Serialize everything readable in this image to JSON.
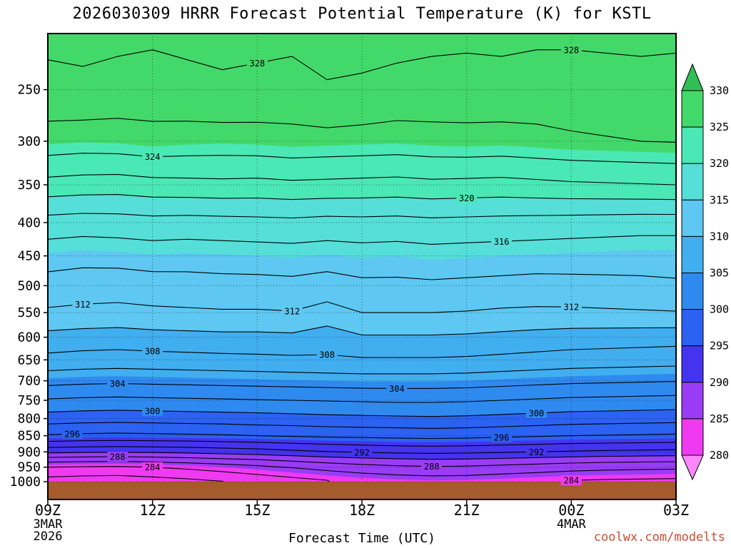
{
  "title": "2026030309 HRRR Forecast Potential Temperature (K) for KSTL",
  "watermark": {
    "text": "coolwx.com/modelts",
    "color": "#cd4a30"
  },
  "axes": {
    "x_label": "Forecast Time (UTC)",
    "x_ticks": [
      {
        "label": "09Z",
        "hour": 0
      },
      {
        "label": "12Z",
        "hour": 3
      },
      {
        "label": "15Z",
        "hour": 6
      },
      {
        "label": "18Z",
        "hour": 9
      },
      {
        "label": "21Z",
        "hour": 12
      },
      {
        "label": "00Z",
        "hour": 15
      },
      {
        "label": "03Z",
        "hour": 18
      }
    ],
    "x_date_labels": [
      {
        "text": "3MAR",
        "hour": 0,
        "row": 0
      },
      {
        "text": "2026",
        "hour": 0,
        "row": 1
      },
      {
        "text": "4MAR",
        "hour": 15,
        "row": 0
      }
    ],
    "y_ticks_hPa": [
      250,
      300,
      350,
      400,
      450,
      500,
      550,
      600,
      650,
      700,
      750,
      800,
      850,
      900,
      950,
      1000
    ]
  },
  "colorbar": {
    "tick_labels": [
      330,
      325,
      320,
      315,
      310,
      305,
      300,
      295,
      290,
      285,
      280
    ]
  },
  "chart_data": {
    "type": "heatmap",
    "geometry": "time-height filled-contour cross-section",
    "title": "2026030309 HRRR Forecast Potential Temperature (K) for KSTL",
    "xlabel": "Forecast Time (UTC)",
    "y_scale": "log-pressure",
    "p_range_plot": [
      1065,
      205
    ],
    "forecast_hour_offset": [
      0,
      1,
      2,
      3,
      4,
      5,
      6,
      7,
      8,
      9,
      10,
      11,
      12,
      13,
      14,
      15,
      16,
      17,
      18
    ],
    "pressure_levels_hPa": [
      1000,
      975,
      950,
      925,
      900,
      875,
      850,
      825,
      800,
      775,
      750,
      700,
      650,
      600,
      550,
      500,
      450,
      400,
      350,
      300,
      250,
      200
    ],
    "potential_temperature_K": [
      [
        281.0,
        280.8,
        280.7,
        281.0,
        281.4,
        281.9,
        282.5,
        283.1,
        283.7,
        284.2,
        284.5,
        284.7,
        284.6,
        284.3,
        284.0,
        283.7,
        283.5,
        283.4,
        283.3
      ],
      [
        282.5,
        282.3,
        282.2,
        282.5,
        282.9,
        283.4,
        284.0,
        284.6,
        285.2,
        285.7,
        286.1,
        286.3,
        286.2,
        285.9,
        285.6,
        285.3,
        285.1,
        285.0,
        284.9
      ],
      [
        284.0,
        283.8,
        283.7,
        284.0,
        284.4,
        284.9,
        285.5,
        286.1,
        286.7,
        287.2,
        287.6,
        287.8,
        287.7,
        287.4,
        287.1,
        286.8,
        286.6,
        286.5,
        286.4
      ],
      [
        287.0,
        286.8,
        286.7,
        286.9,
        287.2,
        287.6,
        288.0,
        288.5,
        289.0,
        289.4,
        289.7,
        289.9,
        289.8,
        289.6,
        289.3,
        289.0,
        288.8,
        288.7,
        288.6
      ],
      [
        290.5,
        290.3,
        290.2,
        290.3,
        290.5,
        290.8,
        291.1,
        291.5,
        291.9,
        292.2,
        292.4,
        292.5,
        292.4,
        292.2,
        292.0,
        291.8,
        291.6,
        291.5,
        291.4
      ],
      [
        293.2,
        293.0,
        292.9,
        293.0,
        293.1,
        293.3,
        293.5,
        293.8,
        294.1,
        294.3,
        294.5,
        294.6,
        294.5,
        294.3,
        294.1,
        293.9,
        293.8,
        293.7,
        293.6
      ],
      [
        295.8,
        295.6,
        295.5,
        295.6,
        295.7,
        295.8,
        296.0,
        296.2,
        296.4,
        296.5,
        296.6,
        296.7,
        296.6,
        296.4,
        296.2,
        296.0,
        295.9,
        295.8,
        295.7
      ],
      [
        297.4,
        297.2,
        297.1,
        297.2,
        297.3,
        297.4,
        297.6,
        297.7,
        297.9,
        298.0,
        298.1,
        298.2,
        298.1,
        297.9,
        297.7,
        297.5,
        297.4,
        297.3,
        297.2
      ],
      [
        299.0,
        298.8,
        298.7,
        298.8,
        298.9,
        299.0,
        299.1,
        299.3,
        299.4,
        299.5,
        299.6,
        299.7,
        299.6,
        299.4,
        299.2,
        299.0,
        298.9,
        298.8,
        298.7
      ],
      [
        300.4,
        300.2,
        300.1,
        300.2,
        300.3,
        300.4,
        300.5,
        300.6,
        300.8,
        300.9,
        301.0,
        301.0,
        300.9,
        300.7,
        300.5,
        300.3,
        300.2,
        300.1,
        300.0
      ],
      [
        301.8,
        301.6,
        301.5,
        301.6,
        301.7,
        301.8,
        301.9,
        302.0,
        302.1,
        302.2,
        302.3,
        302.3,
        302.2,
        302.0,
        301.8,
        301.6,
        301.5,
        301.4,
        301.3
      ],
      [
        304.7,
        304.5,
        304.4,
        304.5,
        304.6,
        304.7,
        304.8,
        304.9,
        305.0,
        305.1,
        305.1,
        305.1,
        305.0,
        304.8,
        304.6,
        304.4,
        304.3,
        304.2,
        304.1
      ],
      [
        307.4,
        307.2,
        307.1,
        307.2,
        307.3,
        307.4,
        307.5,
        307.6,
        307.7,
        307.8,
        307.8,
        307.8,
        307.7,
        307.5,
        307.3,
        307.1,
        307.0,
        306.9,
        306.8
      ],
      [
        309.4,
        309.2,
        309.1,
        309.3,
        309.4,
        309.5,
        309.5,
        309.6,
        309.0,
        309.8,
        309.8,
        309.8,
        309.7,
        309.5,
        309.3,
        309.1,
        309.0,
        308.9,
        308.8
      ],
      [
        311.7,
        311.5,
        311.4,
        311.6,
        311.7,
        311.8,
        311.8,
        311.9,
        311.2,
        312.0,
        312.0,
        312.0,
        311.9,
        311.7,
        311.6,
        311.6,
        311.7,
        311.8,
        311.9
      ],
      [
        313.3,
        313.1,
        313.0,
        313.2,
        313.3,
        313.4,
        313.4,
        313.5,
        313.2,
        313.6,
        313.6,
        313.7,
        313.6,
        313.5,
        313.4,
        313.5,
        313.6,
        313.7,
        313.8
      ],
      [
        314.8,
        314.6,
        314.7,
        314.9,
        314.8,
        314.9,
        315.0,
        315.1,
        314.9,
        315.1,
        315.0,
        315.2,
        315.1,
        315.0,
        314.9,
        314.8,
        314.7,
        314.6,
        314.6
      ],
      [
        317.2,
        317.0,
        317.1,
        317.3,
        317.2,
        317.3,
        317.4,
        317.5,
        317.3,
        317.4,
        317.3,
        317.5,
        317.4,
        317.3,
        317.2,
        317.1,
        317.0,
        316.9,
        316.9
      ],
      [
        321.3,
        321.1,
        321.0,
        321.3,
        321.4,
        321.5,
        321.4,
        321.6,
        321.5,
        321.4,
        321.3,
        321.5,
        321.4,
        321.3,
        321.5,
        321.7,
        321.8,
        321.9,
        322.0
      ],
      [
        325.3,
        325.1,
        325.2,
        325.5,
        325.3,
        325.2,
        325.3,
        325.5,
        325.4,
        325.3,
        325.2,
        325.4,
        325.5,
        325.4,
        325.6,
        325.8,
        325.9,
        326.0,
        326.1
      ],
      [
        327.1,
        327.3,
        327.0,
        326.8,
        327.1,
        327.4,
        327.2,
        327.0,
        327.7,
        327.5,
        327.2,
        327.0,
        326.9,
        327.0,
        326.8,
        326.8,
        326.9,
        327.0,
        326.9
      ],
      [
        329.0,
        329.2,
        328.9,
        328.7,
        329.0,
        329.3,
        329.1,
        328.9,
        329.6,
        329.4,
        329.1,
        328.9,
        328.8,
        328.9,
        328.7,
        328.7,
        328.8,
        328.9,
        328.8
      ]
    ],
    "contour_interval_K": 2,
    "label_interval_K": 4,
    "fill_interval_K": 5,
    "fill_levels_K": [
      280,
      285,
      290,
      295,
      300,
      305,
      310,
      315,
      320,
      325,
      330
    ],
    "fill_colors": [
      "#ff86ff",
      "#ef3af2",
      "#9a3cf5",
      "#4434f0",
      "#2b62f2",
      "#2f8af0",
      "#41aef0",
      "#5ec8f2",
      "#55dfd8",
      "#4ae8b4",
      "#43d96a",
      "#2fbf55"
    ],
    "ground_color": "#a55b2b",
    "contour_labels": [
      {
        "v": 328,
        "h": 6
      },
      {
        "v": 328,
        "h": 15
      },
      {
        "v": 324,
        "h": 3
      },
      {
        "v": 320,
        "h": 12
      },
      {
        "v": 316,
        "h": 13
      },
      {
        "v": 312,
        "h": 1
      },
      {
        "v": 312,
        "h": 7
      },
      {
        "v": 312,
        "h": 15
      },
      {
        "v": 308,
        "h": 3
      },
      {
        "v": 308,
        "h": 8
      },
      {
        "v": 304,
        "h": 2
      },
      {
        "v": 304,
        "h": 10
      },
      {
        "v": 300,
        "h": 3
      },
      {
        "v": 300,
        "h": 14
      },
      {
        "v": 296,
        "h": 0.7
      },
      {
        "v": 296,
        "h": 13
      },
      {
        "v": 292,
        "h": 9
      },
      {
        "v": 292,
        "h": 14
      },
      {
        "v": 288,
        "h": 2
      },
      {
        "v": 288,
        "h": 11
      },
      {
        "v": 284,
        "h": 3
      },
      {
        "v": 284,
        "h": 15
      }
    ]
  }
}
